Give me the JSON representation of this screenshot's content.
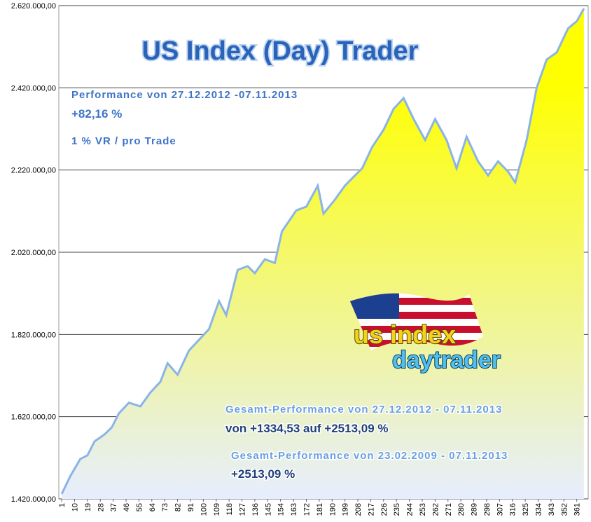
{
  "chart_data": {
    "type": "area",
    "title": "US Index (Day) Trader",
    "x": [
      1,
      7,
      14,
      19,
      24,
      31,
      36,
      41,
      48,
      56,
      63,
      70,
      75,
      82,
      90,
      97,
      104,
      111,
      116,
      124,
      131,
      136,
      143,
      150,
      155,
      165,
      172,
      180,
      184,
      192,
      199,
      206,
      211,
      218,
      226,
      233,
      240,
      247,
      255,
      262,
      270,
      277,
      284,
      292,
      299,
      306,
      313,
      318,
      326,
      333,
      340,
      347,
      355,
      361,
      366
    ],
    "values": [
      1432000,
      1475000,
      1517000,
      1526000,
      1560000,
      1577000,
      1594000,
      1628000,
      1654000,
      1645000,
      1679000,
      1705000,
      1750000,
      1722000,
      1781000,
      1807000,
      1833000,
      1901000,
      1867000,
      1977000,
      1986000,
      1969000,
      2003000,
      1994000,
      2071000,
      2122000,
      2131000,
      2182000,
      2114000,
      2148000,
      2182000,
      2207000,
      2224000,
      2276000,
      2318000,
      2369000,
      2395000,
      2344000,
      2293000,
      2344000,
      2293000,
      2224000,
      2301000,
      2241000,
      2207000,
      2241000,
      2216000,
      2190000,
      2293000,
      2420000,
      2489000,
      2506000,
      2565000,
      2582000,
      2613000
    ],
    "line_color": "#8ab4e8",
    "fill_top": "#ffff00",
    "fill_bottom": "#e6eeff",
    "xlim": [
      -1,
      369
    ],
    "xticks": [
      1,
      10,
      19,
      28,
      37,
      46,
      55,
      64,
      73,
      82,
      91,
      100,
      109,
      118,
      127,
      136,
      145,
      154,
      163,
      172,
      181,
      190,
      199,
      208,
      217,
      226,
      235,
      244,
      253,
      262,
      271,
      280,
      289,
      298,
      307,
      316,
      325,
      334,
      343,
      352,
      361
    ],
    "ylim": [
      1420000,
      2620000
    ],
    "yticks": [
      {
        "value": 1420000,
        "label": "1.420.000,00"
      },
      {
        "value": 1620000,
        "label": "1.620.000,00"
      },
      {
        "value": 1820000,
        "label": "1.820.000,00"
      },
      {
        "value": 2020000,
        "label": "2.020.000,00"
      },
      {
        "value": 2220000,
        "label": "2.220.000,00"
      },
      {
        "value": 2420000,
        "label": "2.420.000,00"
      },
      {
        "value": 2620000,
        "label": "2.620.000,00"
      }
    ],
    "grid": true,
    "annotations": [
      "Performance  von  27.12.2012 -07.11.2013",
      "+82,16  %",
      "1 % VR / pro Trade",
      "Gesamt-Performance  von  27.12.2012 - 07.11.2013",
      "von +1334,53 auf +2513,09 %",
      "Gesamt-Performance  von  23.02.2009 - 07.11.2013",
      "+2513,09 %"
    ],
    "logo": [
      "us index",
      "daytrader"
    ]
  }
}
